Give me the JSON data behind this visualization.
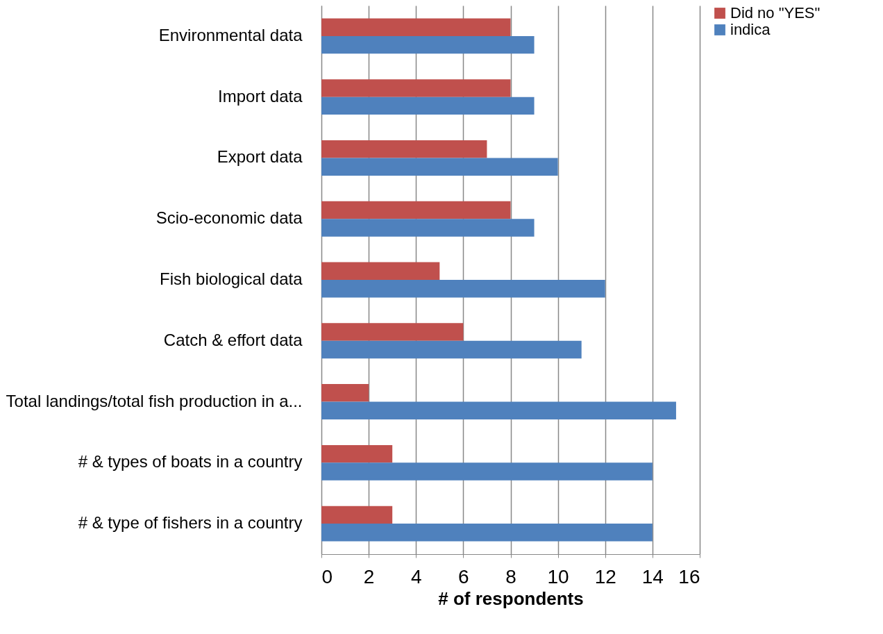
{
  "chart_data": {
    "type": "bar",
    "orientation": "horizontal",
    "xlabel": "# of respondents",
    "categories": [
      "Environmental data",
      "Import data",
      "Export data",
      "Scio-economic data",
      "Fish biological data",
      "Catch & effort data",
      "Total landings/total fish production in a...",
      "# & types of boats in a country",
      "# & type of fishers in a country"
    ],
    "series": [
      {
        "name": "Did no \"YES\"",
        "color": "#c0504d",
        "values": [
          8,
          8,
          7,
          8,
          5,
          6,
          2,
          3,
          3
        ]
      },
      {
        "name": "indica",
        "color": "#4f81bd",
        "values": [
          9,
          9,
          10,
          9,
          12,
          11,
          15,
          14,
          14
        ]
      }
    ],
    "xlim": [
      0,
      16
    ],
    "xticks": [
      0,
      2,
      4,
      6,
      8,
      10,
      12,
      14,
      16
    ],
    "grid": "x",
    "legend": "right"
  }
}
